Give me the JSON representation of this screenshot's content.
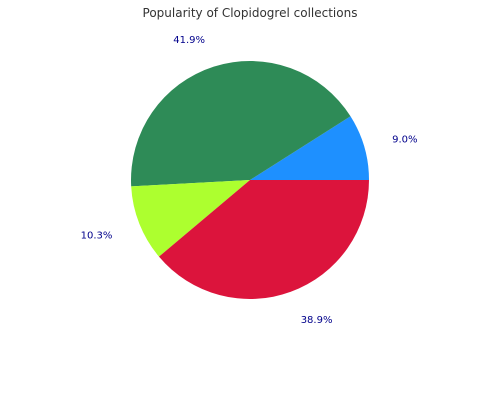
{
  "chart_data": {
    "type": "pie",
    "title": "Popularity of Clopidogrel collections",
    "slices": [
      {
        "label": "9.0%",
        "value": 9.0,
        "color": "#1e90ff"
      },
      {
        "label": "41.9%",
        "value": 41.9,
        "color": "#2e8b57"
      },
      {
        "label": "10.3%",
        "value": 10.3,
        "color": "#adff2f"
      },
      {
        "label": "38.9%",
        "value": 38.9,
        "color": "#dc143c"
      }
    ],
    "start_angle_deg": 0,
    "direction": "counterclockwise",
    "label_color": "#00008b"
  }
}
